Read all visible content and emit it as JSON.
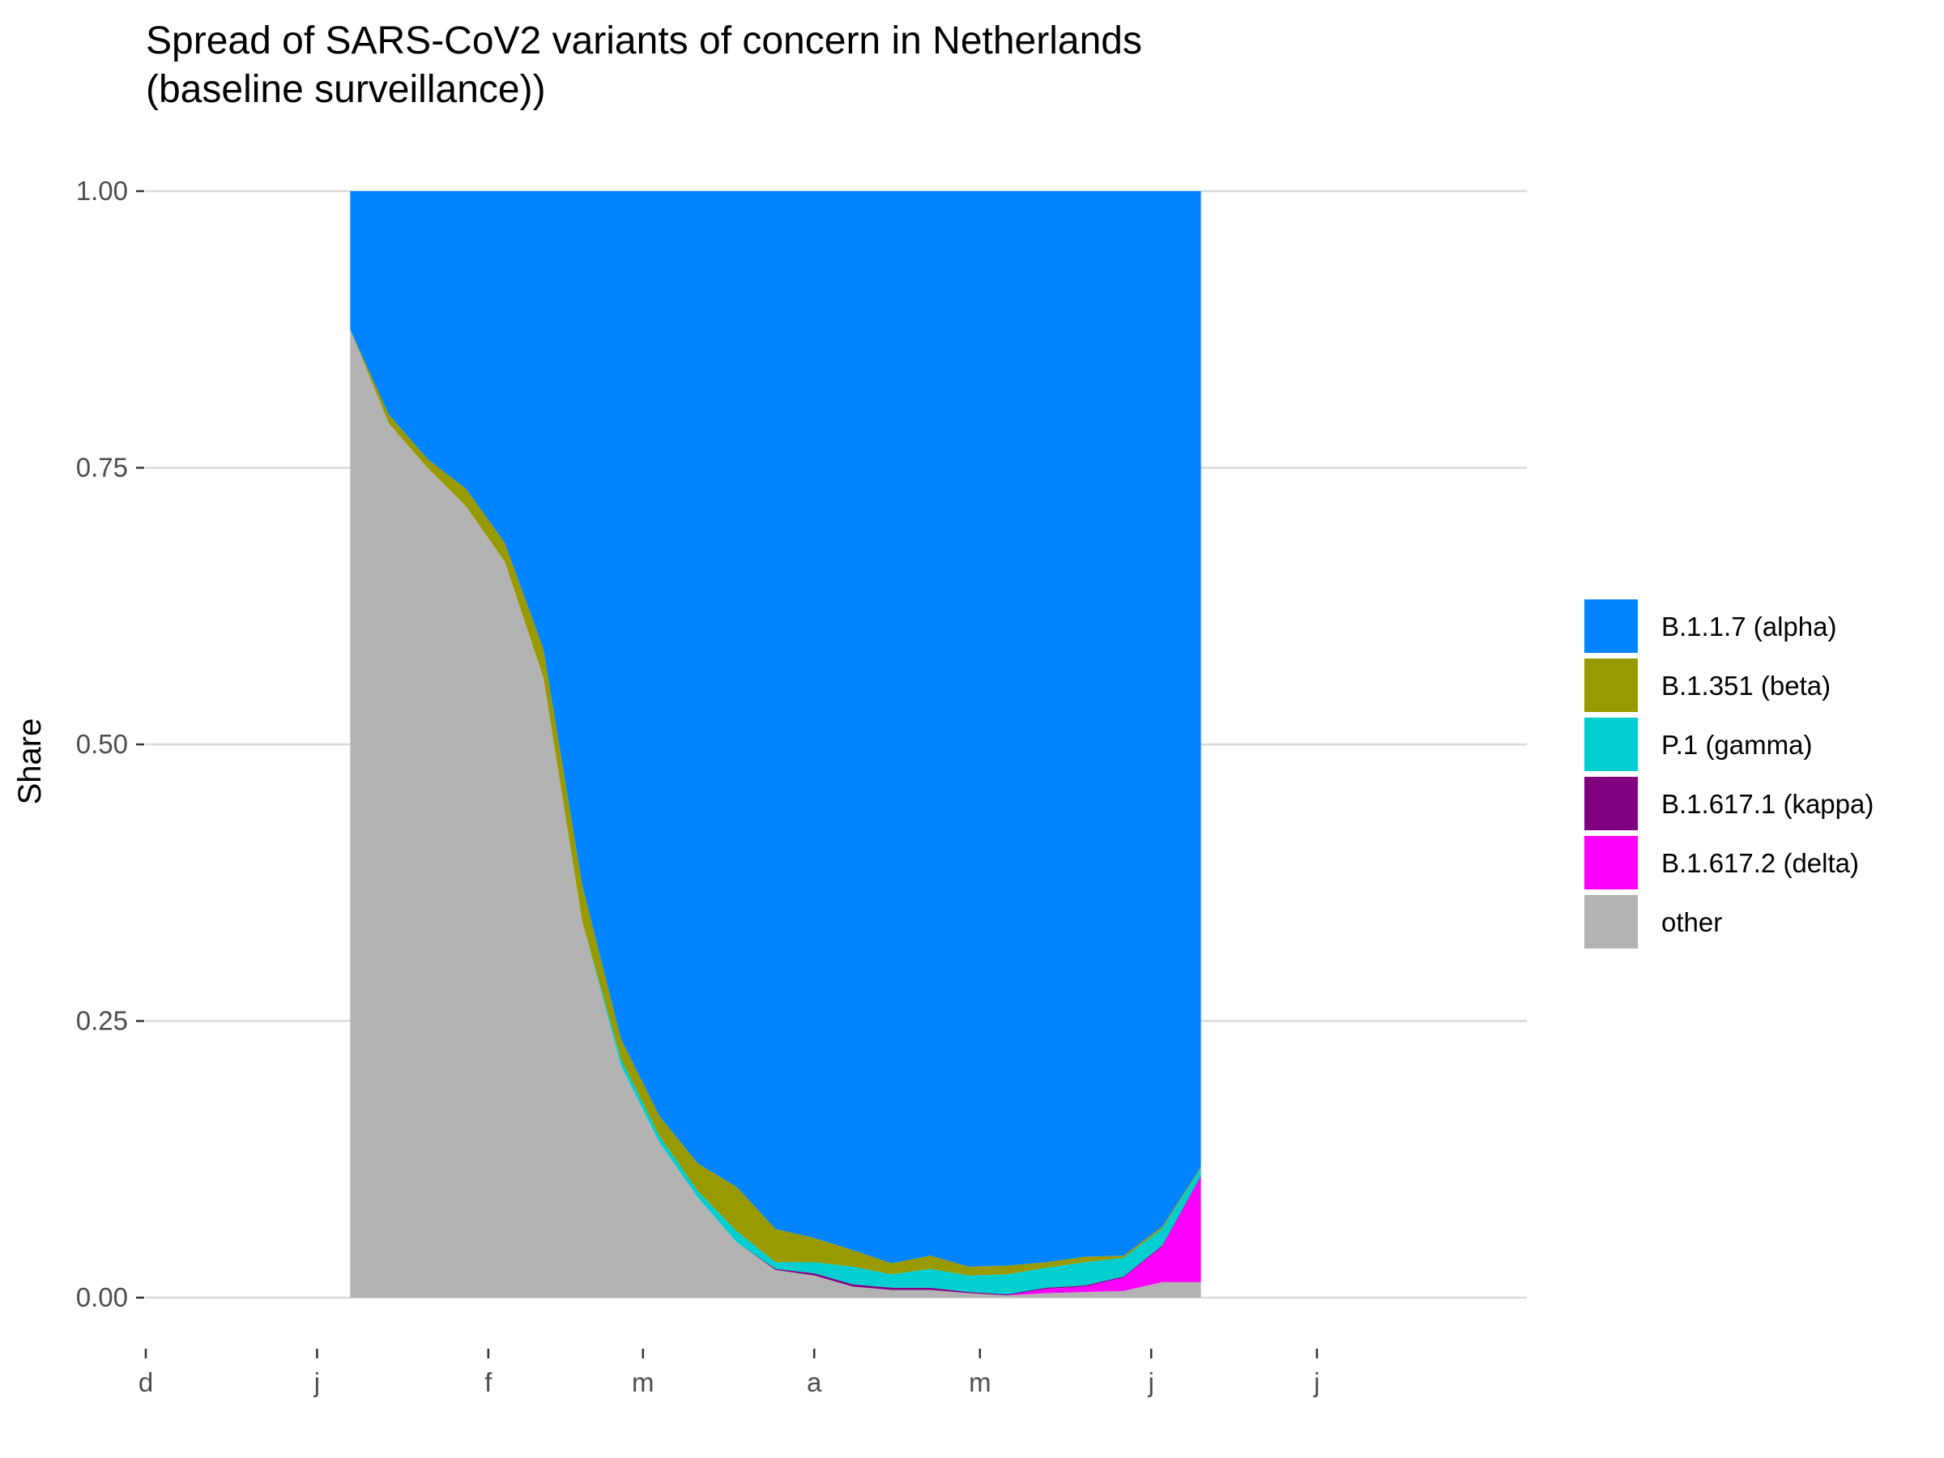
{
  "chart_data": {
    "type": "area",
    "title_lines": [
      "Spread of SARS-CoV2 variants of concern in Netherlands",
      "(baseline surveillance))"
    ],
    "xlabel": "",
    "ylabel": "Share",
    "ylim": [
      0,
      1
    ],
    "y_ticks": [
      {
        "value": 0,
        "label": "0.00"
      },
      {
        "value": 0.25,
        "label": "0.25"
      },
      {
        "value": 0.5,
        "label": "0.50"
      },
      {
        "value": 0.75,
        "label": "0.75"
      },
      {
        "value": 1,
        "label": "1.00"
      }
    ],
    "x_range": [
      "2020-12-01",
      "2021-08-08"
    ],
    "x_ticks": [
      {
        "date": "2020-12-01",
        "label": "d"
      },
      {
        "date": "2021-01-01",
        "label": "j"
      },
      {
        "date": "2021-02-01",
        "label": "f"
      },
      {
        "date": "2021-03-01",
        "label": "m"
      },
      {
        "date": "2021-04-01",
        "label": "a"
      },
      {
        "date": "2021-05-01",
        "label": "m"
      },
      {
        "date": "2021-06-01",
        "label": "j"
      },
      {
        "date": "2021-07-01",
        "label": "j"
      }
    ],
    "grid": true,
    "legend_position": "right",
    "stacking": "fill",
    "x": [
      "2021-01-07",
      "2021-01-14",
      "2021-01-21",
      "2021-01-28",
      "2021-02-04",
      "2021-02-11",
      "2021-02-18",
      "2021-02-25",
      "2021-03-04",
      "2021-03-11",
      "2021-03-18",
      "2021-03-25",
      "2021-04-01",
      "2021-04-08",
      "2021-04-15",
      "2021-04-22",
      "2021-04-29",
      "2021-05-06",
      "2021-05-13",
      "2021-05-20",
      "2021-05-27",
      "2021-06-03",
      "2021-06-10"
    ],
    "series": [
      {
        "name": "other",
        "color": "#B3B3B3",
        "values": [
          0.875,
          0.79,
          0.75,
          0.715,
          0.665,
          0.56,
          0.34,
          0.21,
          0.14,
          0.09,
          0.05,
          0.025,
          0.02,
          0.01,
          0.007,
          0.007,
          0.004,
          0.002,
          0.004,
          0.005,
          0.006,
          0.014,
          0.014
        ]
      },
      {
        "name": "B.1.617.2 (delta)",
        "color": "#FF00FF",
        "values": [
          0,
          0,
          0,
          0,
          0,
          0,
          0,
          0,
          0,
          0,
          0,
          0,
          0,
          0,
          0,
          0,
          0,
          0,
          0.004,
          0.005,
          0.012,
          0.032,
          0.095
        ]
      },
      {
        "name": "B.1.617.1 (kappa)",
        "color": "#800080",
        "values": [
          0,
          0,
          0,
          0,
          0,
          0,
          0,
          0,
          0,
          0,
          0,
          0.001,
          0.002,
          0.002,
          0.002,
          0.002,
          0.001,
          0.001,
          0.001,
          0.001,
          0.001,
          0.001,
          0.001
        ]
      },
      {
        "name": "P.1 (gamma)",
        "color": "#00CED1",
        "values": [
          0,
          0,
          0,
          0,
          0,
          0,
          0,
          0.006,
          0.006,
          0.006,
          0.01,
          0.006,
          0.01,
          0.016,
          0.012,
          0.017,
          0.015,
          0.018,
          0.018,
          0.021,
          0.017,
          0.015,
          0.007
        ]
      },
      {
        "name": "B.1.351 (beta)",
        "color": "#999900",
        "values": [
          0,
          0.008,
          0.008,
          0.016,
          0.017,
          0.026,
          0.033,
          0.018,
          0.018,
          0.025,
          0.04,
          0.03,
          0.022,
          0.015,
          0.01,
          0.012,
          0.008,
          0.008,
          0.005,
          0.005,
          0.002,
          0.002,
          0.001
        ]
      },
      {
        "name": "B.1.1.7 (alpha)",
        "color": "#0084FF",
        "values": [
          0.125,
          0.202,
          0.242,
          0.269,
          0.318,
          0.414,
          0.627,
          0.766,
          0.836,
          0.879,
          0.9,
          0.938,
          0.946,
          0.957,
          0.969,
          0.962,
          0.972,
          0.971,
          0.968,
          0.963,
          0.962,
          0.936,
          0.882
        ]
      }
    ],
    "legend_order": [
      "B.1.1.7 (alpha)",
      "B.1.351 (beta)",
      "P.1 (gamma)",
      "B.1.617.1 (kappa)",
      "B.1.617.2 (delta)",
      "other"
    ]
  }
}
